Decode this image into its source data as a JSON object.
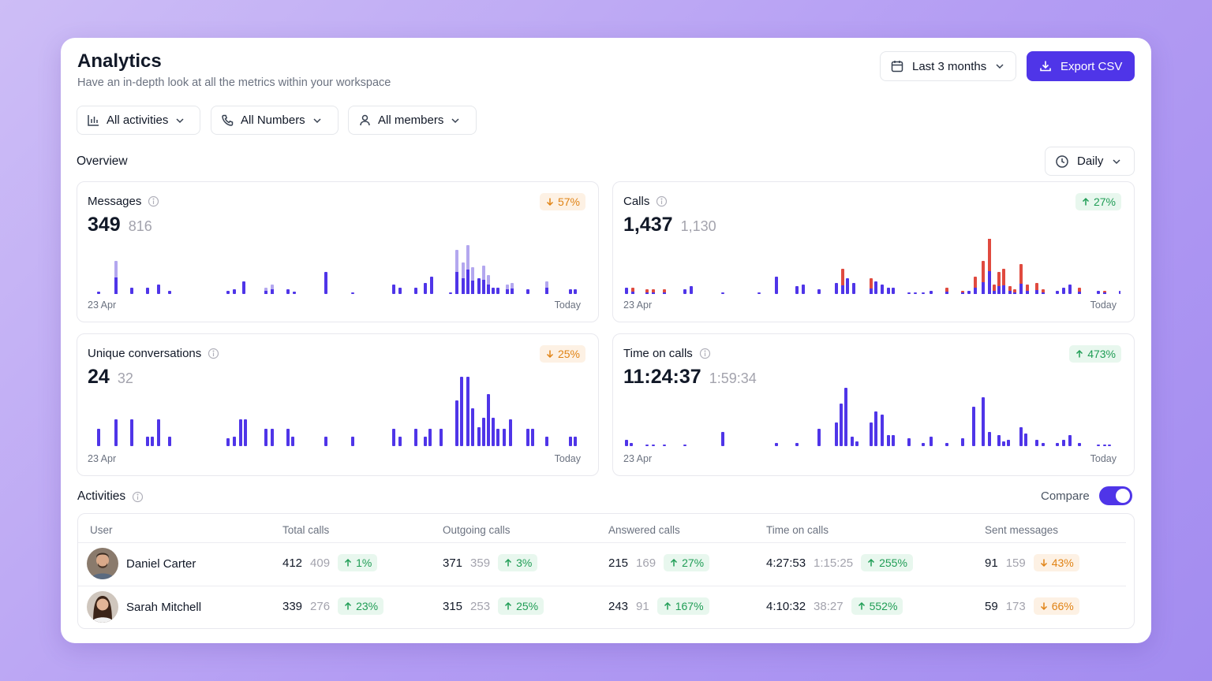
{
  "header": {
    "title": "Analytics",
    "subtitle": "Have an in-depth look at all the metrics within your workspace",
    "date_range": "Last 3 months",
    "export_label": "Export CSV"
  },
  "filters": [
    {
      "label": "All activities",
      "icon": "bar-chart-icon"
    },
    {
      "label": "All Numbers",
      "icon": "phone-icon"
    },
    {
      "label": "All members",
      "icon": "user-icon"
    }
  ],
  "overview": {
    "label": "Overview",
    "granularity": "Daily"
  },
  "colors": {
    "primary": "#4f35e8",
    "bar_light": "#b3a7ef",
    "bar_red": "#e04a3f",
    "up_text": "#1f9d55",
    "down_text": "#e08315"
  },
  "panels": {
    "messages": {
      "title": "Messages",
      "value": "349",
      "previous": "816",
      "change": "57%",
      "direction": "down",
      "x_start": "23 Apr",
      "x_end": "Today"
    },
    "calls": {
      "title": "Calls",
      "value": "1,437",
      "previous": "1,130",
      "change": "27%",
      "direction": "up",
      "x_start": "23 Apr",
      "x_end": "Today"
    },
    "conversations": {
      "title": "Unique conversations",
      "value": "24",
      "previous": "32",
      "change": "25%",
      "direction": "down",
      "x_start": "23 Apr",
      "x_end": "Today"
    },
    "time_on_calls": {
      "title": "Time on calls",
      "value": "11:24:37",
      "previous": "1:59:34",
      "change": "473%",
      "direction": "up",
      "x_start": "23 Apr",
      "x_end": "Today"
    }
  },
  "activities": {
    "label": "Activities",
    "compare_label": "Compare",
    "compare_on": true,
    "columns": [
      "User",
      "Total calls",
      "Outgoing calls",
      "Answered calls",
      "Time on calls",
      "Sent messages"
    ],
    "rows": [
      {
        "name": "Daniel Carter",
        "total_calls": {
          "value": "412",
          "prev": "409",
          "change": "1%",
          "dir": "up"
        },
        "outgoing_calls": {
          "value": "371",
          "prev": "359",
          "change": "3%",
          "dir": "up"
        },
        "answered_calls": {
          "value": "215",
          "prev": "169",
          "change": "27%",
          "dir": "up"
        },
        "time_on_calls": {
          "value": "4:27:53",
          "prev": "1:15:25",
          "change": "255%",
          "dir": "up"
        },
        "sent_messages": {
          "value": "91",
          "prev": "159",
          "change": "43%",
          "dir": "down"
        }
      },
      {
        "name": "Sarah Mitchell",
        "total_calls": {
          "value": "339",
          "prev": "276",
          "change": "23%",
          "dir": "up"
        },
        "outgoing_calls": {
          "value": "315",
          "prev": "253",
          "change": "25%",
          "dir": "up"
        },
        "answered_calls": {
          "value": "243",
          "prev": "91",
          "change": "167%",
          "dir": "up"
        },
        "time_on_calls": {
          "value": "4:10:32",
          "prev": "38:27",
          "change": "552%",
          "dir": "up"
        },
        "sent_messages": {
          "value": "59",
          "prev": "173",
          "change": "66%",
          "dir": "down"
        }
      }
    ]
  }
}
